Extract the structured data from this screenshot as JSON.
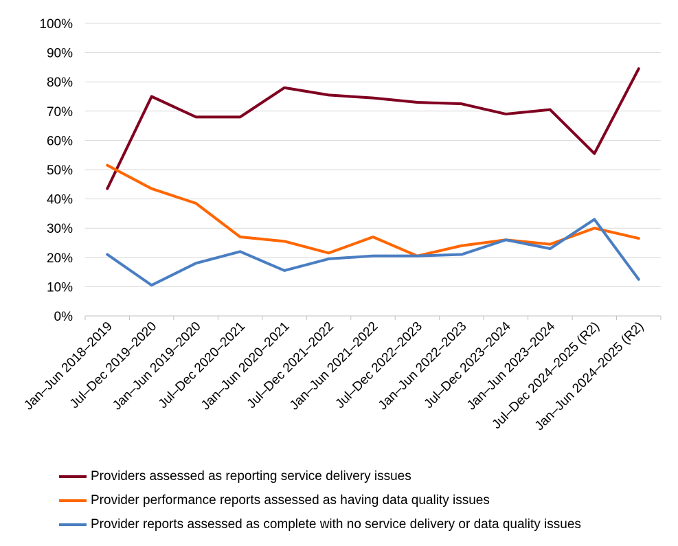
{
  "chart_data": {
    "type": "line",
    "title": "",
    "xlabel": "",
    "ylabel": "",
    "ylim": [
      0,
      100
    ],
    "y_ticks": [
      "0%",
      "10%",
      "20%",
      "30%",
      "40%",
      "50%",
      "60%",
      "70%",
      "80%",
      "90%",
      "100%"
    ],
    "grid": "horizontal",
    "legend_position": "bottom",
    "categories": [
      "Jan–Jun 2018–2019",
      "Jul–Dec 2019–2020",
      "Jan–Jun 2019–2020",
      "Jul–Dec 2020–2021",
      "Jan–Jun 2020–2021",
      "Jul–Dec 2021–2022",
      "Jan–Jun 2021–2022",
      "Jul–Dec 2022–2023",
      "Jan–Jun 2022–2023",
      "Jul–Dec 2023–2024",
      "Jan–Jun 2023–2024",
      "Jul–Dec 2024–2025 (R2)",
      "Jan–Jun 2024–2025 (R2)"
    ],
    "series": [
      {
        "name": "Providers assessed as reporting service delivery issues",
        "color": "#800020",
        "values": [
          43.5,
          75,
          68,
          68,
          78,
          75.5,
          74.5,
          73,
          72.5,
          69,
          70.5,
          55.5,
          84.5
        ]
      },
      {
        "name": "Provider performance reports assessed as having data quality issues",
        "color": "#FF6600",
        "values": [
          51.5,
          43.5,
          38.5,
          27,
          25.5,
          21.5,
          27,
          20.5,
          24,
          26,
          24.5,
          30,
          26.5
        ]
      },
      {
        "name": "Provider reports assessed as complete with no service delivery or data quality issues",
        "color": "#4A7EC2",
        "values": [
          21,
          10.5,
          18,
          22,
          15.5,
          19.5,
          20.5,
          20.5,
          21,
          26,
          23,
          33,
          12.5
        ]
      }
    ]
  }
}
